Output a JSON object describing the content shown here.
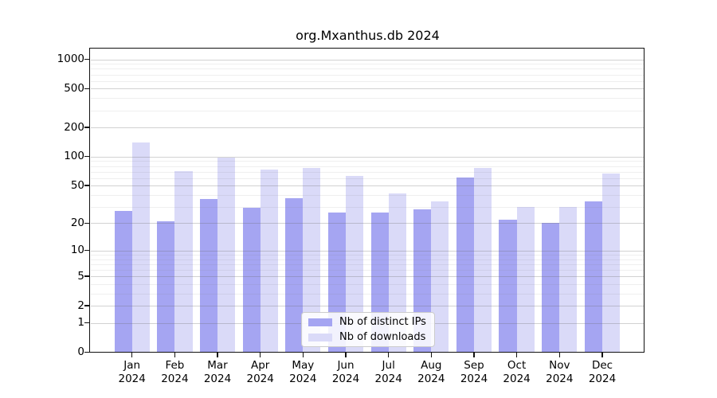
{
  "chart_data": {
    "type": "bar",
    "title": "org.Mxanthus.db 2024",
    "xlabel": "",
    "ylabel": "",
    "scale": "log1p",
    "grid": true,
    "legend_position": "bottom-center",
    "categories": [
      "Jan 2024",
      "Feb 2024",
      "Mar 2024",
      "Apr 2024",
      "May 2024",
      "Jun 2024",
      "Jul 2024",
      "Aug 2024",
      "Sep 2024",
      "Oct 2024",
      "Nov 2024",
      "Dec 2024"
    ],
    "series": [
      {
        "name": "Nb of distinct IPs",
        "color": "#a5a5f2",
        "values": [
          27,
          21,
          36,
          29,
          37,
          26,
          26,
          28,
          61,
          22,
          20,
          34
        ]
      },
      {
        "name": "Nb of downloads",
        "color": "#dadaf8",
        "values": [
          139,
          71,
          98,
          73,
          76,
          63,
          41,
          34,
          77,
          30,
          30,
          67
        ]
      }
    ],
    "yticks": [
      0,
      1,
      2,
      5,
      10,
      20,
      50,
      100,
      200,
      500,
      1000
    ],
    "ylim": [
      0,
      1300
    ]
  }
}
